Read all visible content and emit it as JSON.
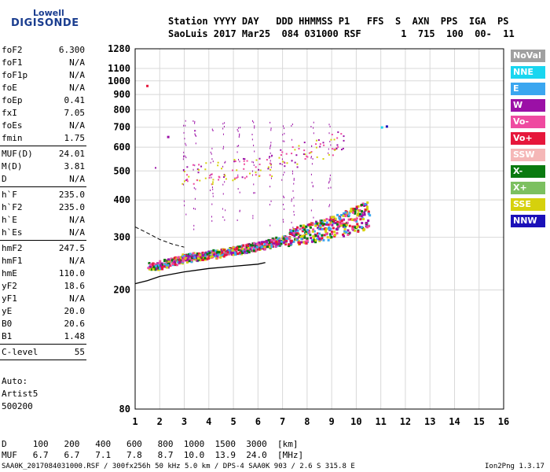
{
  "logo": {
    "top": "Lowell",
    "bottom": "DIGISONDE"
  },
  "header": {
    "line1": "Station YYYY DAY   DDD HHMMSS P1   FFS  S  AXN  PPS  IGA  PS",
    "line2": "SaoLuis 2017 Mar25  084 031000 RSF       1  715  100  00-  11"
  },
  "params": [
    {
      "k": "foF2",
      "v": "6.300"
    },
    {
      "k": "foF1",
      "v": "N/A"
    },
    {
      "k": "foF1p",
      "v": "N/A"
    },
    {
      "k": "foE",
      "v": "N/A"
    },
    {
      "k": "foEp",
      "v": "0.41"
    },
    {
      "k": "fxI",
      "v": "7.05"
    },
    {
      "k": "foEs",
      "v": "N/A"
    },
    {
      "k": "fmin",
      "v": "1.75"
    },
    {
      "k": "MUF(D)",
      "v": "24.01"
    },
    {
      "k": "M(D)",
      "v": "3.81"
    },
    {
      "k": "D",
      "v": "N/A"
    },
    {
      "k": "h`F",
      "v": "235.0"
    },
    {
      "k": "h`F2",
      "v": "235.0"
    },
    {
      "k": "h`E",
      "v": "N/A"
    },
    {
      "k": "h`Es",
      "v": "N/A"
    },
    {
      "k": "hmF2",
      "v": "247.5"
    },
    {
      "k": "hmF1",
      "v": "N/A"
    },
    {
      "k": "hmE",
      "v": "110.0"
    },
    {
      "k": "yF2",
      "v": "18.6"
    },
    {
      "k": "yF1",
      "v": "N/A"
    },
    {
      "k": "yE",
      "v": "20.0"
    },
    {
      "k": "B0",
      "v": "20.6"
    },
    {
      "k": "B1",
      "v": "1.48"
    },
    {
      "k": "C-level",
      "v": "55"
    }
  ],
  "auto": {
    "line1": "Auto:",
    "line2": "Artist5",
    "line3": "500200"
  },
  "legend": [
    {
      "label": "NoVal",
      "color": "#a0a0a0"
    },
    {
      "label": "NNE",
      "color": "#19d6f0"
    },
    {
      "label": "E",
      "color": "#3aa6f0"
    },
    {
      "label": "W",
      "color": "#9b10a6"
    },
    {
      "label": "Vo-",
      "color": "#ef4aa0"
    },
    {
      "label": "Vo+",
      "color": "#e6173b"
    },
    {
      "label": "SSW",
      "color": "#f5b7b7"
    },
    {
      "label": "X-",
      "color": "#0a7a10"
    },
    {
      "label": "X+",
      "color": "#7cc060"
    },
    {
      "label": "SSE",
      "color": "#d6d10c"
    },
    {
      "label": "NNW",
      "color": "#1a10b8"
    }
  ],
  "mufTable": {
    "dLine": "D     100   200   400   600   800  1000  1500  3000  [km]",
    "mufLine": "MUF   6.7   6.7   7.1   7.8   8.7  10.0  13.9  24.0  [MHz]"
  },
  "footer": {
    "left": "SAA0K_2017084031000.RSF / 300fx256h 50 kHz 5.0 km / DPS-4 SAA0K 903 / 2.6 S 315.8 E",
    "right": "Ion2Png 1.3.17"
  },
  "chart_data": {
    "type": "scatter",
    "xlabel": "",
    "ylabel": "",
    "xlim": [
      1,
      16
    ],
    "ylim": [
      80,
      1280
    ],
    "yscale": "log",
    "xticks": [
      1,
      2,
      3,
      4,
      5,
      6,
      7,
      8,
      9,
      10,
      11,
      12,
      13,
      14,
      15,
      16
    ],
    "yticks": [
      80,
      200,
      300,
      400,
      500,
      600,
      700,
      800,
      900,
      1000,
      1100,
      1280
    ],
    "grid": true,
    "series": [
      {
        "role": "O-trace",
        "colors": [
          "#e6173b",
          "#ef4aa0",
          "#9b10a6",
          "#d6d10c",
          "#0a7a10",
          "#3aa6f0"
        ],
        "x": [
          1.6,
          1.8,
          2.0,
          2.2,
          2.4,
          2.6,
          2.8,
          3.0,
          3.2,
          3.4,
          3.6,
          3.8,
          4.0,
          4.2,
          4.4,
          4.6,
          4.8,
          5.0,
          5.2,
          5.4,
          5.6,
          5.8,
          6.0,
          6.2,
          6.4,
          6.6,
          6.8,
          7.0,
          7.2,
          7.4,
          7.6,
          7.8,
          8.0,
          8.2,
          8.4,
          8.6,
          8.8,
          9.0,
          9.2,
          9.4,
          9.6,
          9.8,
          10.0,
          10.2,
          10.4
        ],
        "y": [
          240,
          238,
          242,
          245,
          248,
          250,
          252,
          255,
          256,
          258,
          259,
          260,
          262,
          263,
          265,
          266,
          268,
          270,
          272,
          274,
          276,
          278,
          280,
          282,
          285,
          288,
          290,
          293,
          296,
          298,
          301,
          303,
          305,
          308,
          310,
          312,
          315,
          318,
          322,
          326,
          330,
          335,
          340,
          345,
          350
        ]
      },
      {
        "role": "second-hop",
        "colors": [
          "#d6d10c",
          "#9b10a6",
          "#ef4aa0"
        ],
        "x": [
          3.0,
          3.5,
          4.0,
          4.5,
          5.0,
          5.5,
          6.0,
          6.5,
          7.0,
          7.5,
          8.0,
          8.5,
          9.0,
          9.3
        ],
        "y": [
          480,
          490,
          495,
          500,
          505,
          510,
          520,
          530,
          545,
          560,
          580,
          600,
          620,
          640
        ]
      }
    ],
    "profile": {
      "x": [
        1.0,
        1.5,
        2.0,
        3.0,
        4.0,
        5.0,
        6.0,
        6.3
      ],
      "y": [
        210,
        215,
        222,
        230,
        236,
        240,
        244,
        247
      ]
    },
    "dashed": {
      "x": [
        1.0,
        1.5,
        2.0,
        2.5,
        3.0
      ],
      "y": [
        325,
        310,
        295,
        285,
        278
      ]
    },
    "annotations": [
      {
        "text": "·",
        "x": 1.45,
        "y": 970
      }
    ]
  }
}
